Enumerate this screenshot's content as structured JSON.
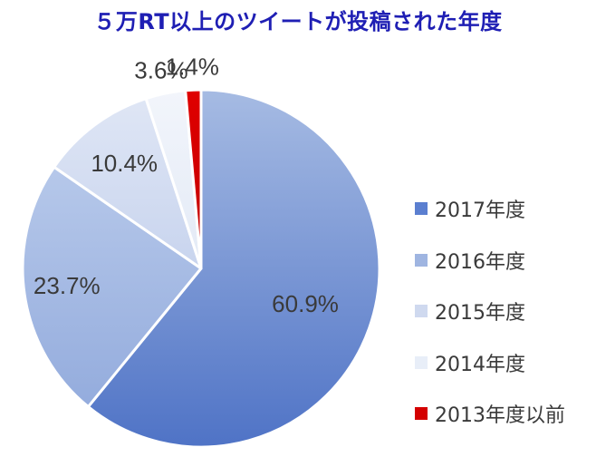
{
  "chart_data": {
    "type": "pie",
    "title": "５万RT以上のツイートが投稿された年度",
    "categories": [
      "2017年度",
      "2016年度",
      "2015年度",
      "2014年度",
      "2013年度以前"
    ],
    "values": [
      60.9,
      23.7,
      10.4,
      3.6,
      1.4
    ],
    "data_labels": [
      "60.9%",
      "23.7%",
      "10.4%",
      "3.6%",
      "1.4%"
    ],
    "colors": [
      "#5b7fd0",
      "#9fb5e1",
      "#cfd9ef",
      "#e8eef8",
      "#d40000"
    ],
    "legend_position": "right"
  }
}
